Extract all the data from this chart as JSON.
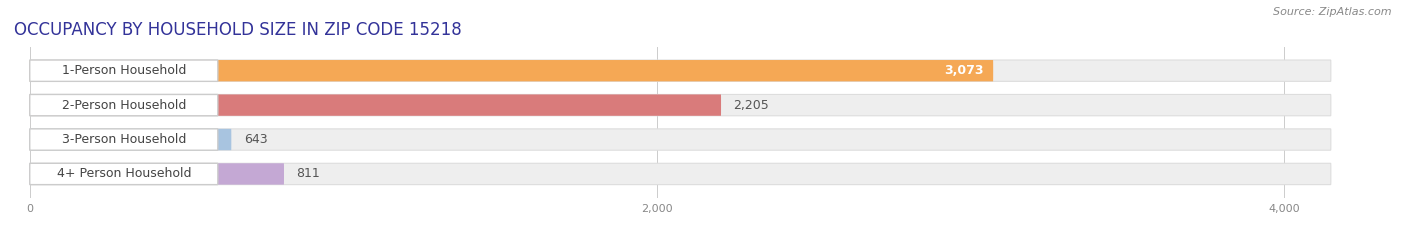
{
  "title": "OCCUPANCY BY HOUSEHOLD SIZE IN ZIP CODE 15218",
  "source": "Source: ZipAtlas.com",
  "categories": [
    "1-Person Household",
    "2-Person Household",
    "3-Person Household",
    "4+ Person Household"
  ],
  "values": [
    3073,
    2205,
    643,
    811
  ],
  "bar_colors": [
    "#F5A855",
    "#D97B7B",
    "#A8C4E0",
    "#C4A8D4"
  ],
  "value_inside": [
    true,
    false,
    false,
    false
  ],
  "xlim": [
    -50,
    4300
  ],
  "data_max": 4000,
  "xticks": [
    0,
    2000,
    4000
  ],
  "background_color": "#ffffff",
  "bar_background_color": "#eeeeee",
  "bar_bg_edge_color": "#dddddd",
  "title_fontsize": 12,
  "source_fontsize": 8,
  "label_fontsize": 9,
  "value_fontsize": 9,
  "title_color": "#333399",
  "label_color": "#444444",
  "value_color": "#555555"
}
